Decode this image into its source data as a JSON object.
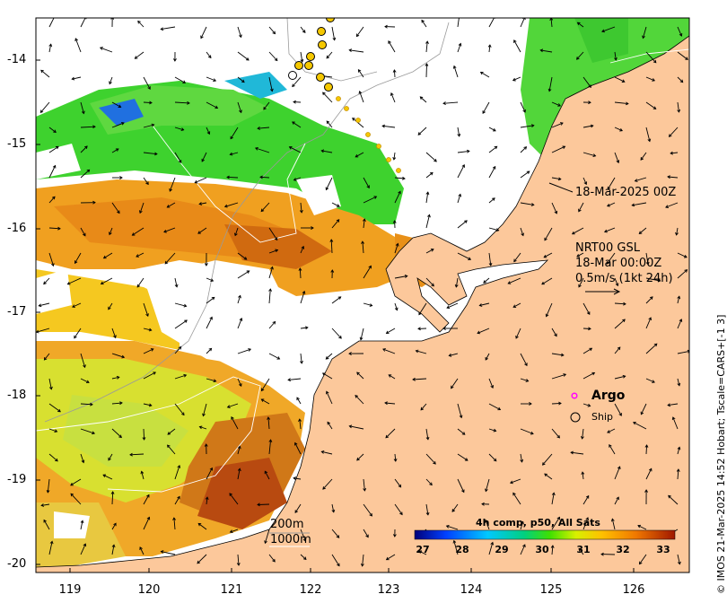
{
  "map": {
    "latitude_ticks": [
      "-14",
      "-15",
      "-16",
      "-17",
      "-18",
      "-19",
      "-20"
    ],
    "longitude_ticks": [
      "119",
      "120",
      "121",
      "122",
      "123",
      "124",
      "125",
      "126"
    ],
    "track_label": "18-Mar-2025 00Z",
    "current_product": "NRT00 GSL",
    "current_time": "18-Mar 00:00Z",
    "vector_scale": "0.5m/s (1kt 24h)",
    "isobath_labels": [
      "200m",
      "1000m"
    ],
    "argo_label": "Argo",
    "ship_label": "Ship",
    "credit": "© IMOS 21-Mar-2025 14:52 Hobart; Tscale=CARS+[-1 3]"
  },
  "colorbar": {
    "title": "4h comp, p50, All Sats",
    "ticks": [
      "27",
      "28",
      "29",
      "30",
      "31",
      "32",
      "33"
    ]
  },
  "colors": {
    "land": "#fcc89b",
    "no_data": "#ffffff",
    "argo_marker": "#ff00ff",
    "ship_track": "#f5c800"
  }
}
